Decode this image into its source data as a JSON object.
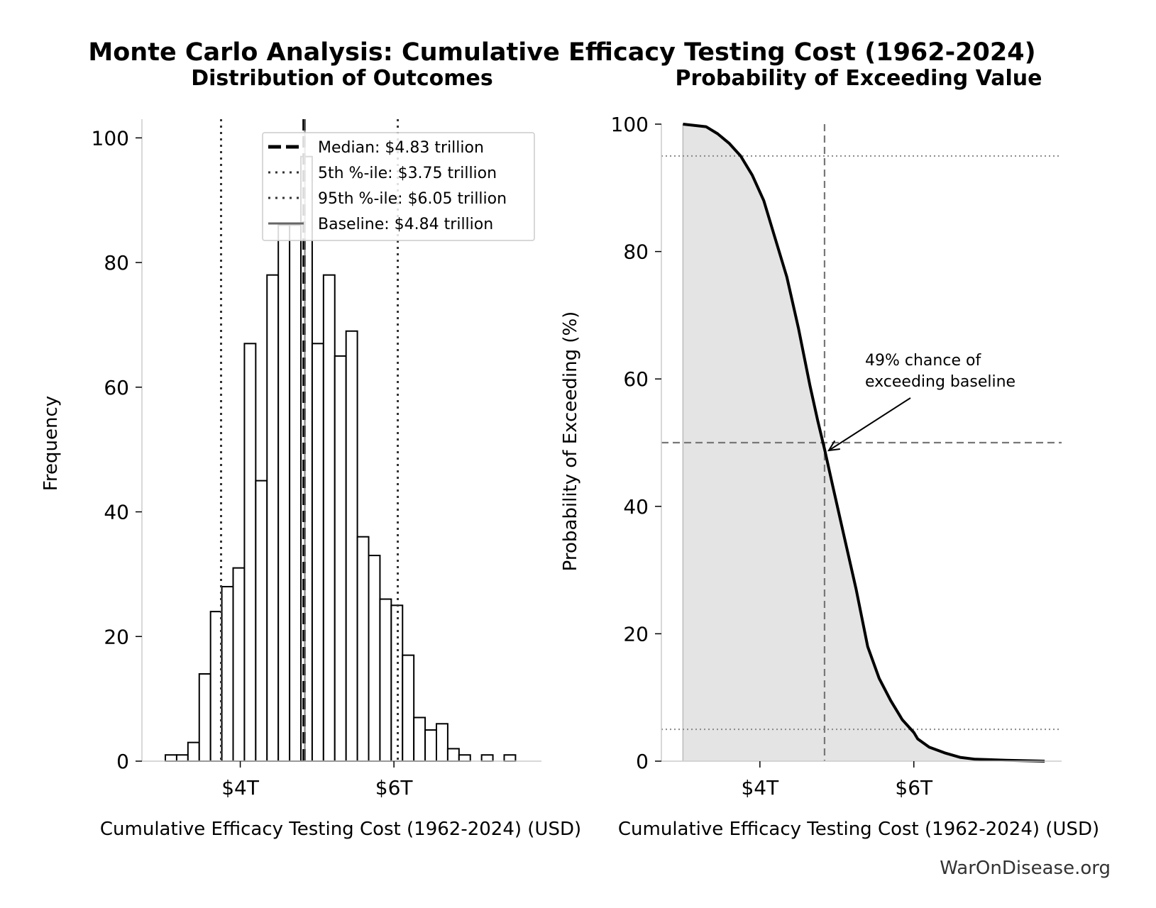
{
  "figure": {
    "title": "Monte Carlo Analysis: Cumulative Efficacy Testing Cost (1962-2024)",
    "watermark": "WarOnDisease.org"
  },
  "chart_data": [
    {
      "type": "bar",
      "subtype": "histogram",
      "title": "Distribution of Outcomes",
      "xlabel": "Cumulative Efficacy Testing Cost (1962-2024) (USD)",
      "ylabel": "Frequency",
      "x_unit": "trillion USD",
      "xlim": [
        2.72,
        7.92
      ],
      "ylim": [
        0,
        103
      ],
      "xticks": [
        4,
        6
      ],
      "xtick_labels": [
        "$4T",
        "$6T"
      ],
      "yticks": [
        0,
        20,
        40,
        60,
        80,
        100
      ],
      "ytick_labels": [
        "0",
        "20",
        "40",
        "60",
        "80",
        "100"
      ],
      "bin_start": 3.025,
      "bin_width": 0.147,
      "counts": [
        1,
        1,
        3,
        14,
        24,
        28,
        31,
        67,
        45,
        78,
        86,
        86,
        97,
        67,
        78,
        65,
        69,
        36,
        33,
        26,
        25,
        17,
        7,
        5,
        6,
        2,
        1,
        0,
        1,
        0,
        1
      ],
      "reference_lines": [
        {
          "name": "median",
          "label": "Median: $4.83 trillion",
          "x": 4.83,
          "style": "dashed",
          "color": "#000000"
        },
        {
          "name": "p5",
          "label": "5th %-ile: $3.75 trillion",
          "x": 3.75,
          "style": "dotted",
          "color": "#333333"
        },
        {
          "name": "p95",
          "label": "95th %-ile: $6.05 trillion",
          "x": 6.05,
          "style": "dotted",
          "color": "#333333"
        },
        {
          "name": "baseline",
          "label": "Baseline: $4.84 trillion",
          "x": 4.84,
          "style": "solid",
          "color": "#666666"
        }
      ],
      "legend_position": "top-right",
      "grid": false
    },
    {
      "type": "area",
      "subtype": "exceedance-curve",
      "title": "Probability of Exceeding Value",
      "xlabel": "Cumulative Efficacy Testing Cost (1962-2024) (USD)",
      "ylabel": "Probability of Exceeding (%)",
      "x_unit": "trillion USD",
      "xlim": [
        2.72,
        7.92
      ],
      "ylim": [
        0,
        100
      ],
      "xticks": [
        4,
        6
      ],
      "xtick_labels": [
        "$4T",
        "$6T"
      ],
      "yticks": [
        0,
        20,
        40,
        60,
        80,
        100
      ],
      "ytick_labels": [
        "0",
        "20",
        "40",
        "60",
        "80",
        "100"
      ],
      "x": [
        3.0,
        3.3,
        3.45,
        3.6,
        3.75,
        3.9,
        4.05,
        4.2,
        4.35,
        4.5,
        4.65,
        4.75,
        4.84,
        4.95,
        5.1,
        5.25,
        5.4,
        5.55,
        5.7,
        5.85,
        6.0,
        6.05,
        6.2,
        6.4,
        6.6,
        6.8,
        7.2,
        7.7
      ],
      "y": [
        100,
        99.6,
        98.5,
        97,
        95,
        92,
        88,
        82,
        76,
        68,
        59,
        53.5,
        49,
        43,
        35,
        27,
        18,
        13,
        9.5,
        6.5,
        4.5,
        3.5,
        2.2,
        1.3,
        0.6,
        0.3,
        0.15,
        0
      ],
      "reference_lines": [
        {
          "name": "baseline",
          "axis": "x",
          "value": 4.84,
          "style": "dashed",
          "color": "#777777"
        },
        {
          "name": "p50",
          "axis": "y",
          "value": 50,
          "style": "dashed",
          "color": "#777777"
        },
        {
          "name": "p95",
          "axis": "y",
          "value": 95,
          "style": "dotted",
          "color": "#888888"
        },
        {
          "name": "p5",
          "axis": "y",
          "value": 5,
          "style": "dotted",
          "color": "#888888"
        }
      ],
      "annotation": {
        "lines": [
          "49% chance of",
          "exceeding baseline"
        ],
        "target": {
          "x": 4.84,
          "y": 49
        }
      },
      "fill_color": "#e4e4e4",
      "line_color": "#000000",
      "grid": false
    }
  ]
}
